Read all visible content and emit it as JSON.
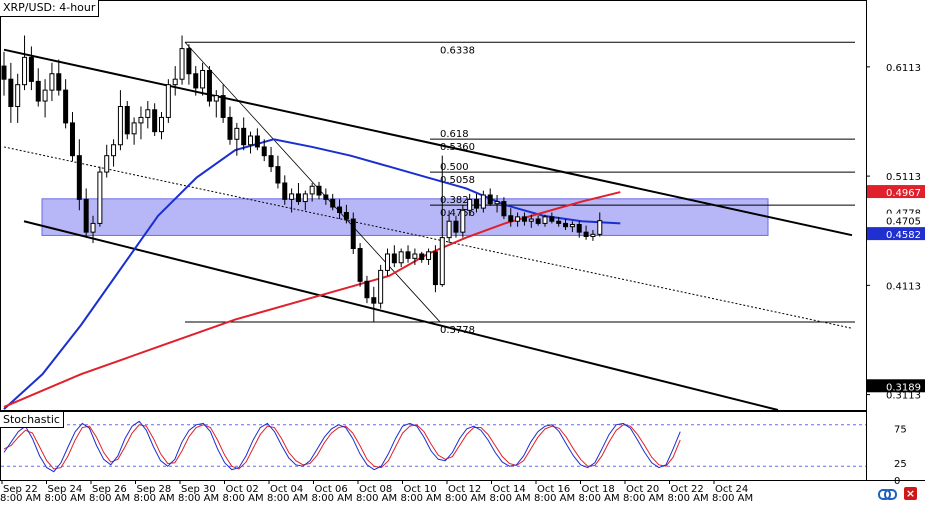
{
  "chart_data": {
    "type": "candlestick",
    "title": "XRP/USD: 4-hour",
    "price_axis": {
      "ticks": [
        "0.6113",
        "0.5113",
        "0.4113",
        "0.3113"
      ],
      "ylim": [
        0.2972,
        0.6725
      ]
    },
    "time_axis": {
      "date_labels": [
        "Sep 22",
        "Sep 24",
        "Sep 26",
        "Sep 28",
        "Sep 30",
        "Oct 02",
        "Oct 04",
        "Oct 06",
        "Oct 08",
        "Oct 10",
        "Oct 12",
        "Oct 14",
        "Oct 16",
        "Oct 18",
        "Oct 20",
        "Oct 22",
        "Oct 24"
      ],
      "time_labels": [
        "8:00 AM",
        "8:00 AM",
        "8:00 AM",
        "8:00 AM",
        "8:00 AM",
        "8:00 AM",
        "8:00 AM",
        "8:00 AM",
        "8:00 AM",
        "8:00 AM",
        "8:00 AM",
        "8:00 AM",
        "8:00 AM",
        "8:00 AM",
        "8:00 AM",
        "8:00 AM",
        "8:00 AM"
      ]
    },
    "price_tags": [
      {
        "label": "0.4967",
        "value": 0.4967,
        "bg": "#e0202a",
        "color": "#ffffff"
      },
      {
        "label": "0.4778",
        "value": 0.4778,
        "bg": "#ffffff",
        "color": "#000000"
      },
      {
        "label": "0.4705",
        "value": 0.4705,
        "bg": "#ffffff",
        "color": "#000000"
      },
      {
        "label": "0.4582",
        "value": 0.4582,
        "bg": "#2030d0",
        "color": "#ffffff"
      },
      {
        "label": "0.3189",
        "value": 0.3189,
        "bg": "#000000",
        "color": "#ffffff"
      }
    ],
    "fibonacci": {
      "swing_high": 0.6338,
      "swing_low": 0.3778,
      "levels": [
        {
          "ratio": "0.618",
          "price": "0.5360",
          "value": 0.536
        },
        {
          "ratio": "0.500",
          "price": "0.5058",
          "value": 0.5058
        },
        {
          "ratio": "0.382",
          "price": "0.4756",
          "value": 0.4756
        }
      ],
      "high_label": "0.6338",
      "low_label": "0.3778"
    },
    "resistance_zone": {
      "from": 0.457,
      "to": 0.4905,
      "color": "#7b7bf0"
    },
    "channel": {
      "upper": [
        {
          "t": 0.0,
          "v": 0.627
        },
        {
          "t": 1.0,
          "v": 0.4572
        }
      ],
      "mid": [
        {
          "t": 0.0,
          "v": 0.538
        },
        {
          "t": 1.0,
          "v": 0.372
        }
      ],
      "lower": [
        {
          "t": 0.0,
          "v": 0.47
        },
        {
          "t": 1.0,
          "v": 0.298
        }
      ]
    },
    "sma_blue": {
      "color": "#1a2fd0",
      "points": [
        [
          0.0,
          0.298
        ],
        [
          0.05,
          0.33
        ],
        [
          0.1,
          0.375
        ],
        [
          0.15,
          0.425
        ],
        [
          0.2,
          0.475
        ],
        [
          0.25,
          0.51
        ],
        [
          0.3,
          0.535
        ],
        [
          0.35,
          0.545
        ],
        [
          0.4,
          0.538
        ],
        [
          0.45,
          0.53
        ],
        [
          0.5,
          0.52
        ],
        [
          0.55,
          0.51
        ],
        [
          0.6,
          0.5
        ],
        [
          0.65,
          0.485
        ],
        [
          0.7,
          0.475
        ],
        [
          0.75,
          0.47
        ],
        [
          0.8,
          0.468
        ]
      ]
    },
    "sma_red": {
      "color": "#e0202a",
      "points": [
        [
          0.0,
          0.3
        ],
        [
          0.1,
          0.33
        ],
        [
          0.2,
          0.355
        ],
        [
          0.3,
          0.38
        ],
        [
          0.4,
          0.4
        ],
        [
          0.5,
          0.42
        ],
        [
          0.55,
          0.44
        ],
        [
          0.6,
          0.455
        ],
        [
          0.65,
          0.468
        ],
        [
          0.7,
          0.478
        ],
        [
          0.75,
          0.488
        ],
        [
          0.8,
          0.4967
        ]
      ]
    },
    "candles": [
      [
        0.0,
        0.612,
        0.625,
        0.585,
        0.6
      ],
      [
        0.008,
        0.6,
        0.615,
        0.56,
        0.575
      ],
      [
        0.016,
        0.575,
        0.605,
        0.56,
        0.595
      ],
      [
        0.024,
        0.595,
        0.64,
        0.59,
        0.62
      ],
      [
        0.032,
        0.62,
        0.63,
        0.59,
        0.598
      ],
      [
        0.04,
        0.598,
        0.61,
        0.575,
        0.58
      ],
      [
        0.048,
        0.58,
        0.6,
        0.565,
        0.59
      ],
      [
        0.056,
        0.59,
        0.615,
        0.58,
        0.605
      ],
      [
        0.064,
        0.605,
        0.618,
        0.585,
        0.59
      ],
      [
        0.072,
        0.59,
        0.6,
        0.555,
        0.56
      ],
      [
        0.08,
        0.56,
        0.57,
        0.525,
        0.53
      ],
      [
        0.088,
        0.53,
        0.545,
        0.48,
        0.49
      ],
      [
        0.096,
        0.49,
        0.5,
        0.455,
        0.46
      ],
      [
        0.104,
        0.46,
        0.475,
        0.45,
        0.468
      ],
      [
        0.112,
        0.468,
        0.52,
        0.465,
        0.515
      ],
      [
        0.12,
        0.515,
        0.54,
        0.51,
        0.53
      ],
      [
        0.128,
        0.53,
        0.545,
        0.52,
        0.54
      ],
      [
        0.136,
        0.54,
        0.59,
        0.535,
        0.575
      ],
      [
        0.144,
        0.575,
        0.58,
        0.545,
        0.55
      ],
      [
        0.152,
        0.55,
        0.565,
        0.54,
        0.56
      ],
      [
        0.16,
        0.56,
        0.575,
        0.545,
        0.565
      ],
      [
        0.168,
        0.565,
        0.58,
        0.555,
        0.572
      ],
      [
        0.176,
        0.572,
        0.578,
        0.548,
        0.552
      ],
      [
        0.184,
        0.552,
        0.57,
        0.545,
        0.565
      ],
      [
        0.192,
        0.565,
        0.6,
        0.56,
        0.595
      ],
      [
        0.2,
        0.595,
        0.612,
        0.585,
        0.6
      ],
      [
        0.208,
        0.6,
        0.64,
        0.595,
        0.628
      ],
      [
        0.216,
        0.628,
        0.632,
        0.595,
        0.605
      ],
      [
        0.224,
        0.605,
        0.612,
        0.585,
        0.592
      ],
      [
        0.232,
        0.592,
        0.615,
        0.585,
        0.608
      ],
      [
        0.24,
        0.608,
        0.612,
        0.575,
        0.58
      ],
      [
        0.248,
        0.58,
        0.59,
        0.565,
        0.585
      ],
      [
        0.256,
        0.585,
        0.595,
        0.56,
        0.565
      ],
      [
        0.264,
        0.565,
        0.575,
        0.54,
        0.545
      ],
      [
        0.272,
        0.545,
        0.56,
        0.53,
        0.555
      ],
      [
        0.28,
        0.555,
        0.565,
        0.535,
        0.54
      ],
      [
        0.288,
        0.54,
        0.552,
        0.532,
        0.548
      ],
      [
        0.296,
        0.548,
        0.555,
        0.535,
        0.538
      ],
      [
        0.304,
        0.538,
        0.545,
        0.525,
        0.53
      ],
      [
        0.312,
        0.53,
        0.538,
        0.515,
        0.52
      ],
      [
        0.32,
        0.52,
        0.53,
        0.5,
        0.505
      ],
      [
        0.328,
        0.505,
        0.512,
        0.485,
        0.49
      ],
      [
        0.336,
        0.49,
        0.5,
        0.478,
        0.495
      ],
      [
        0.344,
        0.495,
        0.505,
        0.485,
        0.488
      ],
      [
        0.352,
        0.488,
        0.498,
        0.48,
        0.495
      ],
      [
        0.36,
        0.495,
        0.505,
        0.488,
        0.502
      ],
      [
        0.368,
        0.502,
        0.506,
        0.49,
        0.494
      ],
      [
        0.376,
        0.494,
        0.5,
        0.485,
        0.49
      ],
      [
        0.384,
        0.49,
        0.495,
        0.48,
        0.483
      ],
      [
        0.392,
        0.483,
        0.49,
        0.472,
        0.478
      ],
      [
        0.4,
        0.478,
        0.485,
        0.468,
        0.472
      ],
      [
        0.408,
        0.472,
        0.478,
        0.44,
        0.445
      ],
      [
        0.416,
        0.445,
        0.45,
        0.41,
        0.415
      ],
      [
        0.424,
        0.415,
        0.42,
        0.395,
        0.4
      ],
      [
        0.432,
        0.4,
        0.41,
        0.378,
        0.395
      ],
      [
        0.44,
        0.395,
        0.43,
        0.39,
        0.425
      ],
      [
        0.448,
        0.425,
        0.445,
        0.42,
        0.44
      ],
      [
        0.456,
        0.44,
        0.448,
        0.428,
        0.432
      ],
      [
        0.464,
        0.432,
        0.445,
        0.428,
        0.442
      ],
      [
        0.472,
        0.442,
        0.448,
        0.432,
        0.436
      ],
      [
        0.48,
        0.436,
        0.445,
        0.43,
        0.44
      ],
      [
        0.488,
        0.44,
        0.442,
        0.432,
        0.435
      ],
      [
        0.496,
        0.435,
        0.445,
        0.43,
        0.442
      ],
      [
        0.504,
        0.442,
        0.448,
        0.405,
        0.412
      ],
      [
        0.512,
        0.412,
        0.53,
        0.41,
        0.455
      ],
      [
        0.52,
        0.455,
        0.48,
        0.45,
        0.47
      ],
      [
        0.528,
        0.47,
        0.475,
        0.455,
        0.46
      ],
      [
        0.536,
        0.46,
        0.485,
        0.455,
        0.48
      ],
      [
        0.544,
        0.48,
        0.495,
        0.475,
        0.49
      ],
      [
        0.552,
        0.49,
        0.495,
        0.478,
        0.482
      ],
      [
        0.56,
        0.482,
        0.498,
        0.478,
        0.494
      ],
      [
        0.568,
        0.494,
        0.5,
        0.484,
        0.486
      ],
      [
        0.576,
        0.486,
        0.494,
        0.478,
        0.488
      ],
      [
        0.584,
        0.488,
        0.492,
        0.472,
        0.475
      ],
      [
        0.592,
        0.475,
        0.482,
        0.465,
        0.47
      ],
      [
        0.6,
        0.47,
        0.478,
        0.465,
        0.474
      ],
      [
        0.608,
        0.474,
        0.478,
        0.466,
        0.47
      ],
      [
        0.616,
        0.47,
        0.476,
        0.464,
        0.472
      ],
      [
        0.624,
        0.472,
        0.475,
        0.466,
        0.468
      ],
      [
        0.632,
        0.468,
        0.476,
        0.465,
        0.474
      ],
      [
        0.64,
        0.474,
        0.478,
        0.468,
        0.47
      ],
      [
        0.648,
        0.47,
        0.474,
        0.465,
        0.468
      ],
      [
        0.656,
        0.468,
        0.472,
        0.462,
        0.465
      ],
      [
        0.664,
        0.465,
        0.47,
        0.46,
        0.467
      ],
      [
        0.672,
        0.467,
        0.47,
        0.455,
        0.46
      ],
      [
        0.68,
        0.46,
        0.466,
        0.453,
        0.456
      ],
      [
        0.688,
        0.456,
        0.462,
        0.452,
        0.458
      ],
      [
        0.696,
        0.458,
        0.478,
        0.456,
        0.4705
      ]
    ],
    "stochastic": {
      "label": "Stochastic",
      "levels": [
        "75",
        "25",
        "0"
      ],
      "overbought": 80,
      "oversold": 20,
      "k_color": "#1a2fd0",
      "d_color": "#e0202a",
      "k": [
        40,
        55,
        70,
        78,
        60,
        35,
        18,
        12,
        25,
        48,
        70,
        82,
        75,
        50,
        30,
        22,
        35,
        60,
        78,
        85,
        72,
        48,
        28,
        20,
        30,
        55,
        72,
        80,
        82,
        70,
        45,
        25,
        15,
        18,
        35,
        58,
        76,
        82,
        70,
        50,
        32,
        22,
        20,
        28,
        45,
        62,
        74,
        80,
        76,
        60,
        38,
        22,
        15,
        20,
        38,
        60,
        78,
        82,
        78,
        62,
        42,
        30,
        28,
        40,
        60,
        74,
        78,
        72,
        58,
        40,
        26,
        20,
        22,
        35,
        55,
        70,
        78,
        80,
        70,
        52,
        35,
        22,
        18,
        25,
        45,
        66,
        80,
        82,
        75,
        58,
        40,
        25,
        18,
        22,
        45,
        70
      ],
      "d": [
        45,
        50,
        62,
        72,
        68,
        48,
        28,
        16,
        18,
        35,
        58,
        76,
        78,
        62,
        40,
        26,
        30,
        48,
        68,
        80,
        78,
        60,
        38,
        24,
        25,
        42,
        63,
        76,
        80,
        76,
        58,
        36,
        20,
        16,
        26,
        46,
        66,
        78,
        76,
        60,
        40,
        28,
        22,
        24,
        36,
        54,
        68,
        76,
        78,
        68,
        50,
        30,
        20,
        18,
        28,
        48,
        68,
        78,
        80,
        70,
        52,
        36,
        30,
        34,
        50,
        66,
        76,
        76,
        66,
        50,
        34,
        24,
        21,
        28,
        45,
        62,
        74,
        78,
        75,
        62,
        45,
        30,
        20,
        21,
        35,
        55,
        72,
        80,
        78,
        66,
        50,
        33,
        22,
        20,
        33,
        58
      ]
    }
  }
}
